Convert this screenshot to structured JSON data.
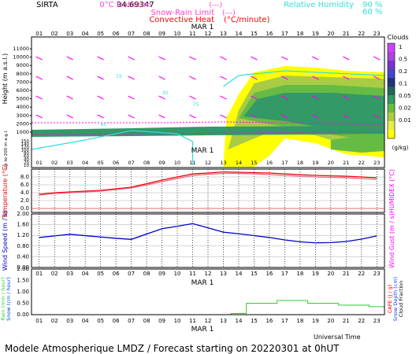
{
  "header": {
    "site": "SIRTA",
    "location_code": "94.69347",
    "legend_left": [
      {
        "label": "0°C isotherm",
        "sample": "(---)",
        "color": "#ff44cc"
      },
      {
        "label": "Snow-Rain Limit",
        "sample": "(---)",
        "color": "#ff44cc"
      },
      {
        "label": "Convective Heat",
        "sample": "(°C/minute)",
        "color": "#ff0000"
      }
    ],
    "legend_right": [
      {
        "label": "Relative Humidity",
        "value": "90 %",
        "color": "#33dddd"
      },
      {
        "label": "",
        "value": "60 %",
        "color": "#33dddd"
      }
    ]
  },
  "date_label": "MAR 1",
  "hours": [
    "01",
    "02",
    "03",
    "04",
    "05",
    "06",
    "07",
    "08",
    "09",
    "10",
    "11",
    "12",
    "13",
    "14",
    "15",
    "16",
    "17",
    "18",
    "19",
    "20",
    "21",
    "22",
    "23"
  ],
  "footer": {
    "model_text": "Modele Atmospherique LMDZ / Forecast starting on 20220301 at 0hUT",
    "time_label": "Universal Time"
  },
  "colors": {
    "clouds": [
      "#ffff00",
      "#e6ee44",
      "#aacc44",
      "#66bb44",
      "#339966",
      "#226655",
      "#223377",
      "#4444cc",
      "#7733cc",
      "#aa44dd",
      "#cc44ff"
    ],
    "temperature": "#ee0000",
    "dewpoint": "#ee6688",
    "wind": "#0000cc",
    "rain": "#33cc33",
    "humidity": "#33dddd",
    "wind_arrow": "#ff00ff"
  },
  "chart_data": [
    {
      "type": "heatmap",
      "title": "Clouds",
      "ylabel": "Height (m a.s.l.)",
      "ylabel_low": "Up to 200 m a.g.l.",
      "y_ticks": [
        "11000",
        "10000",
        "9000",
        "8000",
        "7000",
        "6000",
        "5000",
        "4000",
        "3000",
        "2000",
        "1000",
        "150",
        "140",
        "120",
        "100",
        "80",
        "60",
        "40",
        "20",
        "10"
      ],
      "colorbar_labels": [
        "1",
        "0.5",
        "0.2",
        "0.1",
        "0.05",
        "0.02",
        "0.01"
      ],
      "colorbar_unit": "(g/kg)",
      "isoline_labels": [
        "15",
        "30",
        "60",
        "75"
      ]
    },
    {
      "type": "line",
      "ylabel": "Temperature (°C)",
      "ylabel_right": "HUMIDEX (°C)",
      "y_ticks": [
        "8.0",
        "6.0",
        "4.0",
        "2.0",
        "0.0"
      ],
      "ylim": [
        -1,
        10
      ],
      "series": [
        {
          "values": [
            3.6,
            4.0,
            4.2,
            4.4,
            4.6,
            5.0,
            5.4,
            6.3,
            7.2,
            8.0,
            8.8,
            9.0,
            9.3,
            9.2,
            9.1,
            9.0,
            8.8,
            8.6,
            8.4,
            8.3,
            8.2,
            8.0,
            7.8
          ]
        },
        {
          "values": [
            3.4,
            3.8,
            4.0,
            4.2,
            4.4,
            4.8,
            5.2,
            6.0,
            6.8,
            7.6,
            8.4,
            8.7,
            8.9,
            8.9,
            8.8,
            8.6,
            8.4,
            8.2,
            8.0,
            7.9,
            7.8,
            7.6,
            7.4
          ]
        }
      ]
    },
    {
      "type": "line",
      "ylabel": "Wind Speed (m / s)",
      "ylabel_right": "Wind Gust (m / s)",
      "y_ticks": [
        "2.00",
        "1.60",
        "1.20",
        "0.80",
        "0.40",
        "0.00"
      ],
      "ylim": [
        0,
        2
      ],
      "series": [
        {
          "values": [
            1.12,
            1.18,
            1.24,
            1.19,
            1.14,
            1.09,
            1.05,
            1.25,
            1.45,
            1.54,
            1.64,
            1.48,
            1.32,
            1.26,
            1.19,
            1.12,
            1.03,
            0.96,
            0.92,
            0.93,
            0.97,
            1.06,
            1.18
          ]
        }
      ]
    },
    {
      "type": "bar",
      "ylabel": "Rain (mm / hour)",
      "ylabel_2": "Snow (cm / hour)",
      "ylabel_right": "CAPE (J / g)",
      "ylabel_right_2": "Snow Depth (cm)",
      "ylabel_right_3": "Cloud Fraction",
      "y_ticks": [
        "2.00",
        "1.50",
        "1.00",
        "0.50",
        "0.00"
      ],
      "ylim": [
        0,
        2
      ],
      "rain_values": [
        0,
        0,
        0,
        0,
        0,
        0,
        0,
        0,
        0,
        0,
        0,
        0,
        0,
        0.05,
        0.5,
        0.5,
        0.62,
        0.62,
        0.5,
        0.5,
        0.42,
        0.42,
        0.35
      ]
    }
  ]
}
